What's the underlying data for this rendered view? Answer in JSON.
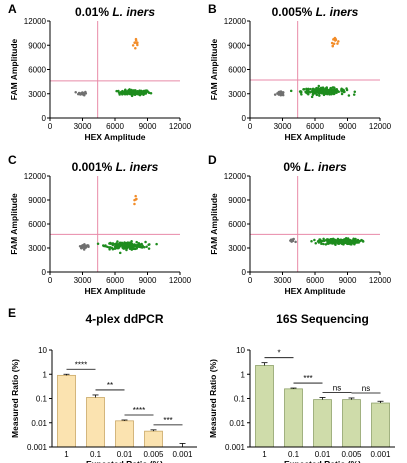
{
  "colors": {
    "orange": "#f28c28",
    "green": "#1e8c1e",
    "gray": "#707070",
    "threshold": "#e88aa8",
    "bar_left": "#fbe3b0",
    "bar_left_edge": "#c9a766",
    "bar_right": "#cfdcaa",
    "bar_right_edge": "#8fa26b"
  },
  "chart_data": [
    {
      "panel": "A",
      "type": "scatter",
      "title": "0.01% ",
      "title_italic": "L. iners",
      "xlabel": "HEX Amplitude",
      "ylabel": "FAM Amplitude",
      "xlim": [
        0,
        12000
      ],
      "ylim": [
        0,
        12000
      ],
      "xticks": [
        0,
        3000,
        6000,
        9000,
        12000
      ],
      "yticks": [
        0,
        3000,
        6000,
        9000,
        12000
      ],
      "thresholds": {
        "x": 4400,
        "y": 4600
      },
      "clusters": [
        {
          "name": "orange",
          "x_center": 8000,
          "y_center": 9200,
          "x_spread": 350,
          "y_spread": 900,
          "n": 9
        },
        {
          "name": "green",
          "x_center": 7800,
          "y_center": 3150,
          "x_spread": 1600,
          "y_spread": 350,
          "n": 150
        },
        {
          "name": "gray",
          "x_center": 3000,
          "y_center": 3050,
          "x_spread": 400,
          "y_spread": 250,
          "n": 20
        }
      ]
    },
    {
      "panel": "B",
      "type": "scatter",
      "title": "0.005% ",
      "title_italic": "L. iners",
      "xlabel": "HEX Amplitude",
      "ylabel": "FAM Amplitude",
      "xlim": [
        0,
        12000
      ],
      "ylim": [
        0,
        12000
      ],
      "xticks": [
        0,
        3000,
        6000,
        9000,
        12000
      ],
      "yticks": [
        0,
        3000,
        6000,
        9000,
        12000
      ],
      "thresholds": {
        "x": 4400,
        "y": 4700
      },
      "clusters": [
        {
          "name": "orange",
          "x_center": 7800,
          "y_center": 9600,
          "x_spread": 350,
          "y_spread": 700,
          "n": 12
        },
        {
          "name": "green",
          "x_center": 6800,
          "y_center": 3300,
          "x_spread": 2300,
          "y_spread": 450,
          "n": 220
        },
        {
          "name": "gray",
          "x_center": 2800,
          "y_center": 3000,
          "x_spread": 400,
          "y_spread": 250,
          "n": 30
        }
      ]
    },
    {
      "panel": "C",
      "type": "scatter",
      "title": "0.001% ",
      "title_italic": "L. iners",
      "xlabel": "HEX Amplitude",
      "ylabel": "FAM Amplitude",
      "xlim": [
        0,
        12000
      ],
      "ylim": [
        0,
        12000
      ],
      "xticks": [
        0,
        3000,
        6000,
        9000,
        12000
      ],
      "yticks": [
        0,
        3000,
        6000,
        9000,
        12000
      ],
      "thresholds": {
        "x": 4400,
        "y": 4700
      },
      "clusters": [
        {
          "name": "orange",
          "x_center": 8000,
          "y_center": 9300,
          "x_spread": 200,
          "y_spread": 700,
          "n": 5
        },
        {
          "name": "green",
          "x_center": 7000,
          "y_center": 3300,
          "x_spread": 2000,
          "y_spread": 500,
          "n": 200
        },
        {
          "name": "gray",
          "x_center": 3200,
          "y_center": 3200,
          "x_spread": 500,
          "y_spread": 300,
          "n": 35
        }
      ]
    },
    {
      "panel": "D",
      "type": "scatter",
      "title": "0% ",
      "title_italic": "L. iners",
      "xlabel": "HEX Amplitude",
      "ylabel": "FAM Amplitude",
      "xlim": [
        0,
        12000
      ],
      "ylim": [
        0,
        12000
      ],
      "xticks": [
        0,
        3000,
        6000,
        9000,
        12000
      ],
      "yticks": [
        0,
        3000,
        6000,
        9000,
        12000
      ],
      "thresholds": {
        "x": 4400,
        "y": 4700
      },
      "clusters": [
        {
          "name": "green",
          "x_center": 8300,
          "y_center": 3800,
          "x_spread": 2000,
          "y_spread": 400,
          "n": 200
        },
        {
          "name": "gray",
          "x_center": 3900,
          "y_center": 3900,
          "x_spread": 300,
          "y_spread": 300,
          "n": 10
        }
      ]
    },
    {
      "panel": "E",
      "type": "bar",
      "title": "4-plex ddPCR",
      "xlabel": "Expected Ratio (%)",
      "ylabel": "Measured Ratio (%)",
      "yscale": "log",
      "ylim": [
        0.001,
        10
      ],
      "yticks": [
        "0.001",
        "0.01",
        "0.1",
        "1",
        "10"
      ],
      "categories": [
        "1",
        "0.1",
        "0.01",
        "0.005",
        "0.001"
      ],
      "values": [
        0.9,
        0.11,
        0.012,
        0.0045,
        0.001
      ],
      "errors": [
        0.1,
        0.03,
        0.001,
        0.0006,
        0.0004
      ],
      "significance": [
        {
          "from": 0,
          "to": 1,
          "label": "****"
        },
        {
          "from": 1,
          "to": 2,
          "label": "**"
        },
        {
          "from": 2,
          "to": 3,
          "label": "****"
        },
        {
          "from": 3,
          "to": 4,
          "label": "***"
        }
      ]
    },
    {
      "panel": "",
      "type": "bar",
      "title": "16S Sequencing",
      "xlabel": "Expected Ratio (%)",
      "ylabel": "Measured Ratio (%)",
      "yscale": "log",
      "ylim": [
        0.001,
        10
      ],
      "yticks": [
        "0.001",
        "0.01",
        "0.1",
        "1",
        "10"
      ],
      "categories": [
        "1",
        "0.1",
        "0.01",
        "0.005",
        "0.001"
      ],
      "values": [
        2.3,
        0.25,
        0.09,
        0.09,
        0.065
      ],
      "errors": [
        0.7,
        0.02,
        0.02,
        0.015,
        0.012
      ],
      "significance": [
        {
          "from": 0,
          "to": 1,
          "label": "*"
        },
        {
          "from": 1,
          "to": 2,
          "label": "***"
        },
        {
          "from": 2,
          "to": 3,
          "label": "ns"
        },
        {
          "from": 3,
          "to": 4,
          "label": "ns"
        }
      ]
    }
  ]
}
